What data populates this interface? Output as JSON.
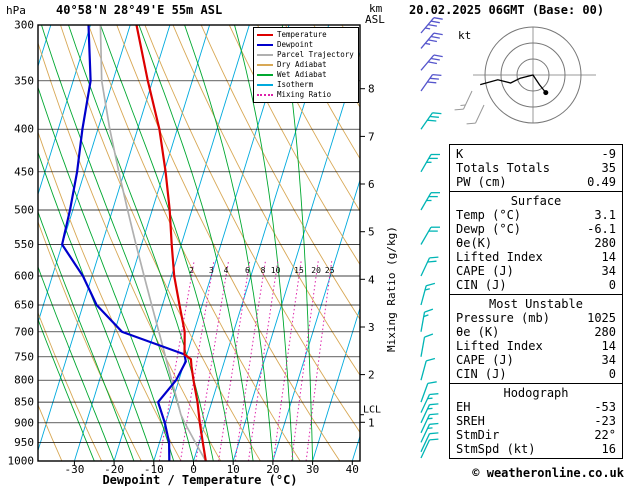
{
  "header": {
    "pressure_unit": "hPa",
    "station": "40°58'N 28°49'E 55m ASL",
    "datetime": "20.02.2025 06GMT (Base: 00)",
    "altitude_unit_line1": "km",
    "altitude_unit_line2": "ASL"
  },
  "legend": {
    "items": [
      {
        "label": "Temperature",
        "color": "#dd0000",
        "dotted": false
      },
      {
        "label": "Dewpoint",
        "color": "#0000cc",
        "dotted": false
      },
      {
        "label": "Parcel Trajectory",
        "color": "#b0b0b0",
        "dotted": false
      },
      {
        "label": "Dry Adiabat",
        "color": "#d8a855",
        "dotted": false
      },
      {
        "label": "Wet Adiabat",
        "color": "#00a830",
        "dotted": false
      },
      {
        "label": "Isotherm",
        "color": "#00aadd",
        "dotted": false
      },
      {
        "label": "Mixing Ratio",
        "color": "#dd22aa",
        "dotted": true
      }
    ]
  },
  "axes": {
    "pressure_ticks": [
      300,
      350,
      400,
      450,
      500,
      550,
      600,
      650,
      700,
      750,
      800,
      850,
      900,
      950,
      1000
    ],
    "temp_ticks": [
      -30,
      -20,
      -10,
      0,
      10,
      20,
      30,
      40
    ],
    "km_ticks": [
      1,
      2,
      3,
      4,
      5,
      6,
      7,
      8
    ],
    "xlabel": "Dewpoint / Temperature (°C)",
    "right_label": "Mixing Ratio (g/kg)",
    "lcl_label": "LCL",
    "mixing_ratio_values": [
      2,
      3,
      4,
      6,
      8,
      10,
      15,
      20,
      25
    ]
  },
  "chart_data": {
    "type": "line",
    "subtype": "skew-t_log-p_sounding",
    "title": "40°58'N 28°49'E 55m ASL",
    "valid": "20.02.2025 06GMT (Base: 00)",
    "pressure_range_hpa": [
      300,
      1000
    ],
    "temp_axis_range_c": [
      -30,
      40
    ],
    "lcl_pressure_hpa": 880,
    "temperature_profile": {
      "name": "Temperature",
      "points_p_t": [
        [
          1000,
          3.1
        ],
        [
          950,
          0.9
        ],
        [
          900,
          -1.4
        ],
        [
          850,
          -3.6
        ],
        [
          800,
          -6.3
        ],
        [
          770,
          -7.9
        ],
        [
          755,
          -8.6
        ],
        [
          745,
          -10.6
        ],
        [
          700,
          -12.3
        ],
        [
          650,
          -15.7
        ],
        [
          600,
          -19.3
        ],
        [
          550,
          -22.4
        ],
        [
          500,
          -25.6
        ],
        [
          450,
          -29.6
        ],
        [
          400,
          -34.5
        ],
        [
          350,
          -41.2
        ],
        [
          300,
          -48.4
        ]
      ]
    },
    "dewpoint_profile": {
      "name": "Dewpoint",
      "points_p_t": [
        [
          1000,
          -6.1
        ],
        [
          950,
          -7.6
        ],
        [
          900,
          -10.2
        ],
        [
          850,
          -13.5
        ],
        [
          800,
          -10.7
        ],
        [
          760,
          -9.7
        ],
        [
          745,
          -10.6
        ],
        [
          700,
          -28.1
        ],
        [
          650,
          -36.6
        ],
        [
          600,
          -42.3
        ],
        [
          550,
          -50.0
        ],
        [
          500,
          -50.7
        ],
        [
          450,
          -51.9
        ],
        [
          400,
          -53.9
        ],
        [
          350,
          -55.6
        ],
        [
          300,
          -60.5
        ]
      ]
    },
    "parcel_profile": {
      "name": "Parcel Trajectory",
      "points_p_t": [
        [
          1000,
          3.1
        ],
        [
          950,
          -1.0
        ],
        [
          900,
          -5.2
        ],
        [
          880,
          -6.8
        ],
        [
          850,
          -8.6
        ],
        [
          800,
          -11.8
        ],
        [
          750,
          -15.2
        ],
        [
          700,
          -18.8
        ],
        [
          650,
          -22.7
        ],
        [
          600,
          -26.9
        ],
        [
          550,
          -31.4
        ],
        [
          500,
          -36.2
        ],
        [
          450,
          -41.4
        ],
        [
          400,
          -47.0
        ],
        [
          350,
          -52.8
        ],
        [
          300,
          -57.5
        ]
      ]
    },
    "wind_barbs": [
      {
        "p": 300,
        "dir": 40,
        "spd": 35
      },
      {
        "p": 320,
        "dir": 40,
        "spd": 35
      },
      {
        "p": 340,
        "dir": 40,
        "spd": 30
      },
      {
        "p": 360,
        "dir": 35,
        "spd": 30
      },
      {
        "p": 400,
        "dir": 35,
        "spd": 30
      },
      {
        "p": 450,
        "dir": 30,
        "spd": 25
      },
      {
        "p": 500,
        "dir": 30,
        "spd": 25
      },
      {
        "p": 550,
        "dir": 30,
        "spd": 20
      },
      {
        "p": 600,
        "dir": 25,
        "spd": 20
      },
      {
        "p": 650,
        "dir": 15,
        "spd": 15
      },
      {
        "p": 700,
        "dir": 10,
        "spd": 15
      },
      {
        "p": 750,
        "dir": 10,
        "spd": 10
      },
      {
        "p": 800,
        "dir": 15,
        "spd": 10
      },
      {
        "p": 850,
        "dir": 20,
        "spd": 10
      },
      {
        "p": 875,
        "dir": 25,
        "spd": 15
      },
      {
        "p": 900,
        "dir": 25,
        "spd": 15
      },
      {
        "p": 925,
        "dir": 25,
        "spd": 15
      },
      {
        "p": 950,
        "dir": 25,
        "spd": 15
      },
      {
        "p": 975,
        "dir": 25,
        "spd": 10
      },
      {
        "p": 1000,
        "dir": 25,
        "spd": 10
      }
    ]
  },
  "hodograph": {
    "unit_label": "kt",
    "ring_radii_kt": [
      10,
      20,
      30
    ],
    "trace_uv_kt": [
      [
        -33,
        -6
      ],
      [
        -22,
        -3
      ],
      [
        -14,
        -5
      ],
      [
        -8,
        -2
      ],
      [
        0,
        0
      ],
      [
        4,
        -6
      ],
      [
        8,
        -11
      ]
    ]
  },
  "panel": {
    "boxes": [
      {
        "header": null,
        "rows": [
          [
            "K",
            "-9"
          ],
          [
            "Totals Totals",
            "35"
          ],
          [
            "PW (cm)",
            "0.49"
          ]
        ]
      },
      {
        "header": "Surface",
        "rows": [
          [
            "Temp (°C)",
            "3.1"
          ],
          [
            "Dewp (°C)",
            "-6.1"
          ],
          [
            "θe(K)",
            "280"
          ],
          [
            "Lifted Index",
            "14"
          ],
          [
            "CAPE (J)",
            "34"
          ],
          [
            "CIN (J)",
            "0"
          ]
        ]
      },
      {
        "header": "Most Unstable",
        "rows": [
          [
            "Pressure (mb)",
            "1025"
          ],
          [
            "θe (K)",
            "280"
          ],
          [
            "Lifted Index",
            "14"
          ],
          [
            "CAPE (J)",
            "34"
          ],
          [
            "CIN (J)",
            "0"
          ]
        ]
      },
      {
        "header": "Hodograph",
        "rows": [
          [
            "EH",
            "-53"
          ],
          [
            "SREH",
            "-23"
          ],
          [
            "StmDir",
            "22°"
          ],
          [
            "StmSpd (kt)",
            "16"
          ]
        ]
      }
    ]
  },
  "footer": {
    "credit": "© weatheronline.co.uk"
  },
  "colors": {
    "temperature": "#dd0000",
    "dewpoint": "#0000cc",
    "parcel": "#b0b0b0",
    "dry_adiabat": "#d8a855",
    "wet_adiabat": "#00a830",
    "isotherm": "#00aadd",
    "mixing_ratio": "#dd22aa",
    "wind_barb": "#00b5b5",
    "wind_barb_upper": "#5555cc",
    "grid": "#000000"
  }
}
